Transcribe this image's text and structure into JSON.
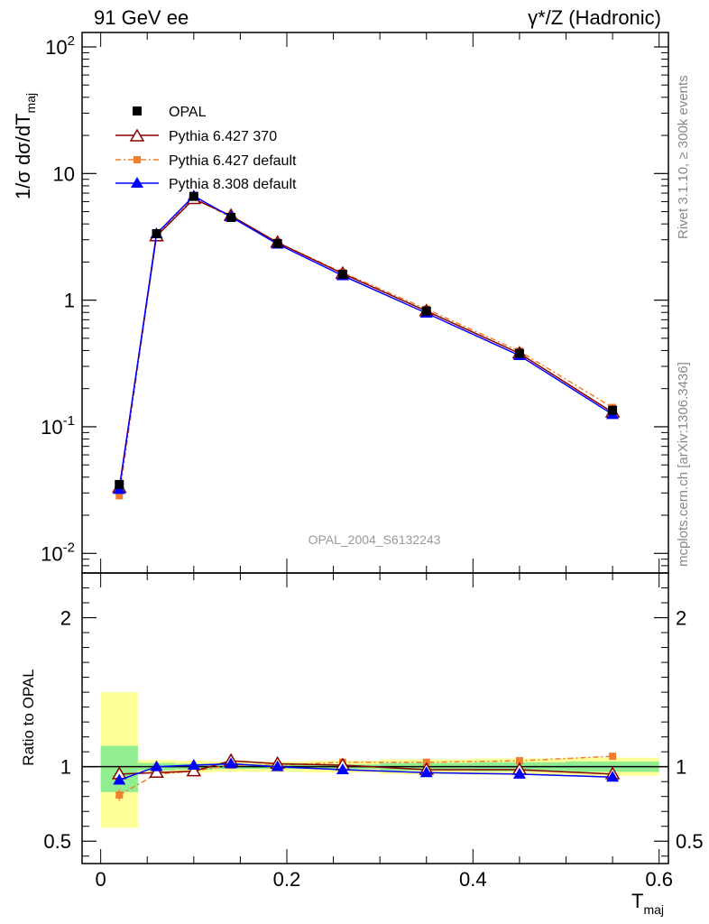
{
  "header": {
    "left": "91 GeV ee",
    "right": "γ*/Z (Hadronic)"
  },
  "side_labels": {
    "rivet": "Rivet 3.1.10, ≥ 300k events",
    "mcplots": "mcplots.cern.ch [arXiv:1306.3436]"
  },
  "analysis_id": "OPAL_2004_S6132243",
  "colors": {
    "data": "#000000",
    "py6_370": "#8b0000",
    "py6_default": "#f08030",
    "py8_default": "#0000ff",
    "band_stat": "#90ee90",
    "band_total": "#ffff99"
  },
  "chart_data": [
    {
      "type": "line",
      "name": "main",
      "yscale": "log",
      "ylabel": "1/σ dσ/dT_maj",
      "ylim": [
        0.007,
        130
      ],
      "xlim": [
        -0.02,
        0.61
      ],
      "y_ticks": [
        {
          "value": 0.01,
          "label": "10^-2"
        },
        {
          "value": 0.1,
          "label": "10^-1"
        },
        {
          "value": 1,
          "label": "1"
        },
        {
          "value": 10,
          "label": "10"
        },
        {
          "value": 100,
          "label": "10^2"
        }
      ],
      "x": [
        0.02,
        0.06,
        0.1,
        0.14,
        0.19,
        0.26,
        0.35,
        0.45,
        0.55
      ],
      "x_bins": [
        [
          0.0,
          0.04
        ],
        [
          0.04,
          0.08
        ],
        [
          0.08,
          0.12
        ],
        [
          0.12,
          0.16
        ],
        [
          0.16,
          0.22
        ],
        [
          0.22,
          0.3
        ],
        [
          0.3,
          0.4
        ],
        [
          0.4,
          0.5
        ],
        [
          0.5,
          0.6
        ]
      ],
      "series": [
        {
          "name": "OPAL",
          "key": "data",
          "values": [
            0.035,
            3.35,
            6.6,
            4.5,
            2.8,
            1.6,
            0.82,
            0.38,
            0.135
          ]
        },
        {
          "name": "Pythia 6.427 370",
          "key": "py6_370",
          "values": [
            0.033,
            3.2,
            6.3,
            4.65,
            2.85,
            1.62,
            0.82,
            0.38,
            0.13
          ]
        },
        {
          "name": "Pythia 6.427 default",
          "key": "py6_default",
          "values": [
            0.0285,
            3.25,
            6.4,
            4.5,
            2.85,
            1.65,
            0.85,
            0.395,
            0.142
          ]
        },
        {
          "name": "Pythia 8.308 default",
          "key": "py8_default",
          "values": [
            0.032,
            3.35,
            6.65,
            4.55,
            2.77,
            1.56,
            0.79,
            0.365,
            0.125
          ]
        }
      ]
    },
    {
      "type": "line",
      "name": "ratio",
      "ylabel": "Ratio to OPAL",
      "xlabel": "T_maj",
      "ylim": [
        0.35,
        2.3
      ],
      "xlim": [
        -0.02,
        0.61
      ],
      "y_ticks": [
        {
          "value": 0.5,
          "label": "0.5"
        },
        {
          "value": 1,
          "label": "1"
        },
        {
          "value": 2,
          "label": "2"
        }
      ],
      "x_ticks": [
        {
          "value": 0,
          "label": "0"
        },
        {
          "value": 0.2,
          "label": "0.2"
        },
        {
          "value": 0.4,
          "label": "0.4"
        },
        {
          "value": 0.6,
          "label": "0.6"
        }
      ],
      "x": [
        0.02,
        0.06,
        0.1,
        0.14,
        0.19,
        0.26,
        0.35,
        0.45,
        0.55
      ],
      "bands": {
        "stat": [
          [
            0.83,
            1.14
          ],
          [
            0.975,
            1.025
          ],
          [
            0.98,
            1.02
          ],
          [
            0.985,
            1.015
          ],
          [
            0.985,
            1.015
          ],
          [
            0.985,
            1.015
          ],
          [
            0.975,
            1.025
          ],
          [
            0.97,
            1.03
          ],
          [
            0.965,
            1.035
          ]
        ],
        "total": [
          [
            0.59,
            1.5
          ],
          [
            0.955,
            1.045
          ],
          [
            0.96,
            1.04
          ],
          [
            0.965,
            1.035
          ],
          [
            0.965,
            1.035
          ],
          [
            0.96,
            1.04
          ],
          [
            0.95,
            1.05
          ],
          [
            0.945,
            1.055
          ],
          [
            0.94,
            1.06
          ]
        ]
      },
      "series": [
        {
          "name": "Pythia 6.427 370",
          "key": "py6_370",
          "values": [
            0.95,
            0.96,
            0.97,
            1.04,
            1.02,
            1.01,
            0.98,
            0.98,
            0.95
          ]
        },
        {
          "name": "Pythia 6.427 default",
          "key": "py6_default",
          "values": [
            0.81,
            0.95,
            0.97,
            1.01,
            1.01,
            1.03,
            1.03,
            1.04,
            1.07
          ]
        },
        {
          "name": "Pythia 8.308 default",
          "key": "py8_default",
          "values": [
            0.91,
            1.0,
            1.01,
            1.02,
            1.0,
            0.98,
            0.96,
            0.95,
            0.93
          ]
        }
      ]
    }
  ]
}
